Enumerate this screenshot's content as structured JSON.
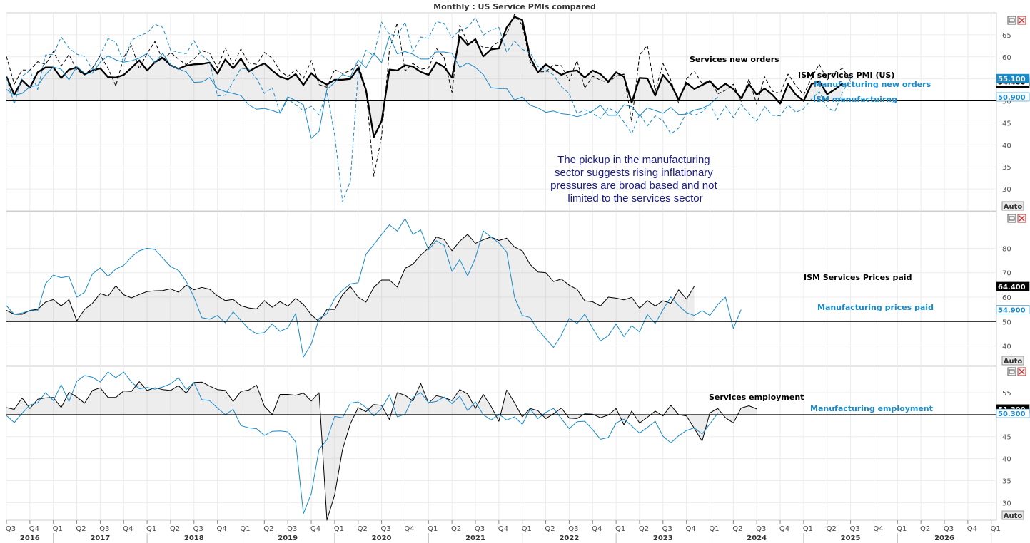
{
  "title": "Monthly : US Service PMIs compared",
  "controls": {
    "auto_label": "Auto"
  },
  "x_axis": {
    "quarters": [
      "Q3",
      "Q4",
      "Q1",
      "Q2",
      "Q3",
      "Q4",
      "Q1",
      "Q2",
      "Q3",
      "Q4",
      "Q1",
      "Q2",
      "Q3",
      "Q4",
      "Q1",
      "Q2",
      "Q3",
      "Q4",
      "Q1",
      "Q2",
      "Q3",
      "Q4",
      "Q1",
      "Q2",
      "Q3",
      "Q4",
      "Q1",
      "Q2",
      "Q3",
      "Q4",
      "Q1",
      "Q2",
      "Q3",
      "Q4",
      "Q1",
      "Q2",
      "Q3",
      "Q4",
      "Q1",
      "Q2",
      "Q3",
      "Q4",
      "Q1"
    ],
    "years": [
      "2016",
      "2017",
      "2018",
      "2019",
      "2020",
      "2021",
      "2022",
      "2023",
      "2024",
      "2025",
      "2026"
    ]
  },
  "annotation": [
    "The pickup in the manufacturing",
    "sector suggests rising inflationary",
    "pressures are broad based and not",
    "limited to the services sector"
  ],
  "chart_data": [
    {
      "type": "line",
      "panel": "top",
      "x_start": "2016-07",
      "ylim": [
        25,
        70
      ],
      "yticks": [
        "65",
        "60",
        "55",
        "50",
        "45",
        "40",
        "35",
        "30"
      ],
      "reference_line": 50,
      "series": [
        {
          "name": "ISM services PMI (US)",
          "color": "#000000",
          "style": "bold",
          "last": "54.000",
          "values": [
            55.5,
            51.4,
            54.7,
            53.0,
            56.5,
            57.6,
            57.6,
            55.2,
            57.1,
            57.6,
            56.0,
            56.9,
            57.4,
            55.4,
            55.3,
            55.9,
            57.5,
            59.2,
            56.9,
            58.8,
            59.8,
            58.1,
            57.3,
            58.0,
            58.3,
            58.4,
            58.7,
            56.2,
            59.4,
            57.4,
            59.6,
            56.7,
            57.7,
            58.5,
            56.9,
            55.5,
            54.9,
            56.1,
            53.6,
            56.3,
            54.7,
            53.7,
            54.8,
            54.8,
            55.0,
            57.5,
            52.5,
            41.8,
            45.4,
            57.1,
            56.9,
            58.1,
            57.8,
            56.6,
            55.9,
            58.7,
            57.7,
            55.3,
            64.7,
            62.7,
            64.0,
            60.1,
            61.7,
            61.9,
            66.7,
            69.1,
            68.4,
            59.9,
            56.5,
            58.3,
            57.1,
            55.9,
            56.7,
            56.9,
            55.3,
            56.9,
            56.1,
            54.4,
            56.5,
            55.5,
            49.6,
            55.2,
            55.1,
            51.2,
            55.9,
            53.8,
            50.3,
            54.1,
            52.7,
            53.6,
            54.5,
            52.6,
            53.9,
            52.7,
            50.6,
            53.8,
            51.4,
            52.8,
            51.4,
            49.4,
            53.8,
            51.4,
            50.0,
            53.8,
            54.5,
            51.5,
            52.6,
            54.0
          ]
        },
        {
          "name": "Services new orders",
          "color": "#000000",
          "style": "dashed",
          "last": "54.400",
          "values": [
            60.1,
            53.8,
            57.0,
            57.0,
            58.9,
            58.3,
            61.2,
            57.9,
            60.5,
            57.0,
            55.9,
            57.5,
            60.3,
            57.4,
            53.4,
            59.9,
            62.6,
            57.3,
            60.8,
            63.5,
            59.2,
            61.0,
            59.5,
            58.2,
            59.5,
            61.4,
            60.8,
            57.5,
            62.0,
            58.2,
            61.8,
            58.6,
            58.3,
            61.0,
            59.7,
            56.8,
            55.5,
            57.2,
            55.1,
            59.2,
            53.7,
            53.1,
            57.1,
            56.2,
            56.9,
            58.3,
            52.9,
            32.9,
            41.9,
            61.6,
            67.7,
            56.8,
            58.5,
            57.2,
            57.4,
            61.9,
            59.8,
            51.9,
            67.2,
            63.2,
            63.3,
            62.1,
            62.1,
            63.5,
            65.2,
            69.7,
            67.2,
            58.9,
            56.6,
            56.6,
            58.2,
            58.0,
            54.6,
            59.1,
            52.9,
            55.6,
            54.7,
            54.2,
            55.6,
            56.1,
            45.2,
            60.4,
            62.6,
            52.2,
            58.5,
            54.7,
            49.5,
            55.0,
            56.8,
            53.9,
            54.7,
            51.6,
            52.4,
            53.8,
            49.9,
            55.0,
            49.2,
            55.5,
            52.2,
            51.7,
            56.1,
            53.5,
            51.3,
            55.2,
            58.3,
            54.8,
            56.5,
            57.4,
            54.4
          ]
        },
        {
          "name": "Manufacturing new orders",
          "color": "#1a8ac9",
          "style": "dashed",
          "last": "55.100",
          "values": [
            55.3,
            49.3,
            55.6,
            56.9,
            52.6,
            60.4,
            60.6,
            64.5,
            62.0,
            60.6,
            60.1,
            57.1,
            60.4,
            64.1,
            63.4,
            58.7,
            63.7,
            64.8,
            65.4,
            67.4,
            66.7,
            61.5,
            61.0,
            60.7,
            63.7,
            60.3,
            59.0,
            51.1,
            51.3,
            54.4,
            57.4,
            57.2,
            55.1,
            51.7,
            53.0,
            47.2,
            50.4,
            49.1,
            47.8,
            48.8,
            46.8,
            52.0,
            42.2,
            27.1,
            31.8,
            56.4,
            61.5,
            60.2,
            67.9,
            65.1,
            64.8,
            67.9,
            61.1,
            64.5,
            64.2,
            68.0,
            67.6,
            64.3,
            66.0,
            66.7,
            68.9,
            64.9,
            66.1,
            66.7,
            61.0,
            63.6,
            61.7,
            61.0,
            57.8,
            57.0,
            55.9,
            53.2,
            51.7,
            47.1,
            48.0,
            47.2,
            46.0,
            48.4,
            47.5,
            45.2,
            42.5,
            47.0,
            44.3,
            46.6,
            45.5,
            42.5,
            43.8,
            47.4,
            46.7,
            47.5,
            49.2,
            45.8,
            48.8,
            46.2,
            49.2,
            47.1,
            45.4,
            48.7,
            46.7,
            46.6,
            49.1,
            47.4,
            48.2,
            50.4,
            52.1,
            48.5,
            47.6,
            52.1,
            55.1
          ]
        },
        {
          "name": "ISM manufactuirng",
          "color": "#1a8ac9",
          "style": "solid",
          "last": "50.900",
          "values": [
            52.6,
            51.3,
            51.7,
            53.2,
            53.5,
            56.0,
            57.7,
            57.2,
            54.8,
            57.8,
            56.3,
            56.3,
            58.8,
            60.2,
            59.3,
            58.8,
            59.1,
            59.7,
            60.8,
            58.7,
            60.8,
            58.1,
            57.3,
            56.6,
            54.2,
            54.3,
            55.3,
            52.8,
            52.1,
            51.7,
            51.2,
            49.1,
            48.1,
            48.3,
            47.8,
            47.2,
            50.9,
            50.1,
            49.1,
            41.5,
            43.1,
            52.6,
            54.2,
            56.0,
            55.4,
            59.3,
            57.5,
            60.8,
            58.7,
            64.7,
            60.7,
            61.2,
            60.6,
            59.5,
            59.5,
            61.1,
            61.1,
            60.8,
            57.6,
            58.6,
            57.6,
            56.0,
            53.0,
            52.8,
            52.8,
            50.2,
            50.9,
            49.0,
            48.4,
            47.4,
            47.7,
            47.1,
            46.9,
            46.4,
            46.9,
            47.7,
            49.0,
            46.7,
            46.7,
            49.1,
            48.7,
            46.6,
            48.4,
            47.8,
            47.2,
            48.5,
            46.9,
            47.0,
            47.9,
            48.3,
            49.2,
            50.9
          ]
        }
      ]
    },
    {
      "type": "line",
      "panel": "middle",
      "x_start": "2016-07",
      "ylim": [
        32,
        95
      ],
      "yticks": [
        "80",
        "70",
        "60",
        "50",
        "40"
      ],
      "reference_line": 50,
      "series": [
        {
          "name": "ISM Services Prices paid",
          "color": "#000000",
          "style": "solid",
          "last": "64.400",
          "values": [
            54.6,
            53.0,
            53.0,
            54.6,
            55.0,
            58.0,
            59.0,
            56.4,
            59.0,
            50.3,
            55.0,
            57.5,
            61.5,
            60.4,
            64.6,
            61.0,
            59.7,
            61.1,
            62.3,
            62.6,
            62.7,
            63.4,
            62.0,
            64.9,
            63.0,
            64.0,
            63.2,
            60.5,
            58.6,
            59.1,
            56.5,
            55.6,
            55.2,
            58.6,
            55.9,
            58.2,
            56.3,
            59.5,
            57.0,
            52.8,
            50.0,
            55.0,
            55.0,
            61.0,
            64.4,
            60.0,
            58.0,
            64.0,
            67.0,
            67.0,
            64.1,
            71.8,
            73.5,
            77.2,
            80.1,
            84.6,
            83.6,
            79.0,
            82.9,
            85.7,
            82.0,
            83.5,
            84.6,
            83.2,
            84.1,
            80.5,
            79.0,
            73.4,
            70.3,
            70.0,
            66.4,
            67.4,
            64.9,
            63.2,
            58.5,
            58.1,
            56.4,
            60.0,
            59.6,
            58.9,
            59.9,
            55.5,
            58.6,
            56.4,
            58.5,
            57.5,
            63.0,
            59.2,
            64.4
          ]
        },
        {
          "name": "Manufacturing prices paid",
          "color": "#1a8ac9",
          "style": "solid",
          "last": "54.900",
          "values": [
            56.5,
            53.0,
            53.5,
            54.5,
            54.5,
            65.5,
            69.0,
            68.0,
            68.5,
            60.0,
            62.0,
            69.5,
            72.0,
            68.5,
            71.5,
            73.0,
            76.5,
            79.0,
            80.0,
            79.5,
            76.0,
            72.5,
            71.0,
            66.5,
            60.0,
            51.6,
            51.0,
            52.5,
            49.5,
            54.0,
            50.5,
            47.0,
            45.0,
            45.5,
            49.0,
            46.0,
            47.5,
            53.3,
            35.5,
            40.8,
            51.3,
            53.2,
            59.5,
            62.8,
            65.4,
            65.9,
            77.6,
            81.5,
            85.6,
            89.6,
            87.0,
            92.1,
            85.7,
            87.5,
            79.4,
            83.1,
            81.2,
            70.5,
            75.4,
            68.7,
            76.1,
            87.1,
            84.6,
            82.2,
            78.5,
            60.0,
            52.5,
            51.7,
            46.6,
            43.0,
            39.4,
            44.5,
            51.3,
            49.2,
            53.0,
            47.3,
            42.1,
            44.2,
            49.0,
            43.8,
            48.3,
            45.8,
            52.9,
            49.2,
            54.9,
            60.1,
            56.6,
            53.6,
            52.5,
            54.5,
            52.5,
            57.0,
            60.0,
            47.2,
            54.9
          ]
        }
      ]
    },
    {
      "type": "line",
      "panel": "bottom",
      "x_start": "2016-07",
      "ylim": [
        26,
        61
      ],
      "yticks": [
        "55",
        "50",
        "45",
        "40",
        "35",
        "30"
      ],
      "reference_line": 50,
      "series": [
        {
          "name": "Services employment",
          "color": "#000000",
          "style": "solid",
          "last": "51.300",
          "values": [
            51.6,
            51.2,
            53.8,
            51.4,
            53.5,
            53.8,
            53.9,
            51.6,
            55.1,
            54.0,
            52.6,
            55.5,
            56.1,
            53.9,
            53.9,
            55.4,
            55.3,
            57.5,
            55.5,
            56.1,
            55.7,
            55.5,
            56.6,
            54.9,
            57.3,
            57.4,
            56.5,
            55.7,
            55.5,
            53.0,
            55.3,
            55.6,
            56.7,
            51.9,
            50.0,
            54.6,
            54.6,
            54.4,
            54.9,
            53.1,
            55.0,
            26.0,
            31.8,
            42.1,
            47.9,
            51.6,
            50.7,
            52.3,
            52.1,
            48.9,
            55.0,
            54.4,
            53.1,
            57.1,
            52.6,
            54.3,
            53.9,
            53.2,
            55.7,
            54.7,
            51.4,
            54.6,
            51.9,
            48.5,
            55.6,
            52.7,
            49.5,
            51.4,
            50.9,
            49.1,
            50.2,
            51.5,
            49.2,
            49.1,
            50.2,
            50.1,
            49.3,
            49.9,
            51.4,
            47.7,
            50.8,
            48.1,
            49.4,
            50.8,
            49.7,
            52.1,
            50.0,
            49.7,
            46.9,
            44.0,
            50.4,
            51.4,
            49.3,
            48.1,
            51.5,
            52.0,
            51.3
          ]
        },
        {
          "name": "Manufacturing employment",
          "color": "#1a8ac9",
          "style": "solid",
          "last": "50.300",
          "values": [
            49.8,
            48.2,
            50.3,
            52.2,
            52.7,
            55.0,
            53.2,
            56.8,
            53.0,
            57.6,
            58.9,
            58.5,
            57.4,
            59.7,
            58.4,
            59.7,
            57.4,
            55.9,
            56.2,
            55.8,
            56.3,
            57.0,
            58.4,
            55.7,
            57.3,
            53.4,
            53.2,
            51.5,
            50.0,
            51.2,
            47.5,
            47.0,
            46.8,
            45.3,
            46.2,
            46.3,
            46.1,
            43.8,
            27.5,
            32.1,
            42.1,
            44.3,
            49.6,
            49.3,
            52.6,
            52.9,
            51.6,
            49.7,
            51.4,
            54.5,
            49.5,
            50.1,
            53.9,
            55.0,
            52.7,
            53.0,
            54.0,
            52.5,
            54.2,
            50.9,
            52.9,
            50.0,
            48.8,
            50.1,
            48.8,
            49.5,
            47.8,
            51.3,
            49.1,
            50.5,
            51.4,
            49.1,
            46.8,
            48.4,
            48.5,
            46.6,
            44.4,
            44.8,
            48.1,
            49.0,
            47.4,
            45.8,
            47.1,
            48.5,
            45.1,
            43.6,
            45.2,
            46.4,
            47.0,
            45.6,
            47.9,
            50.3
          ]
        }
      ]
    }
  ]
}
